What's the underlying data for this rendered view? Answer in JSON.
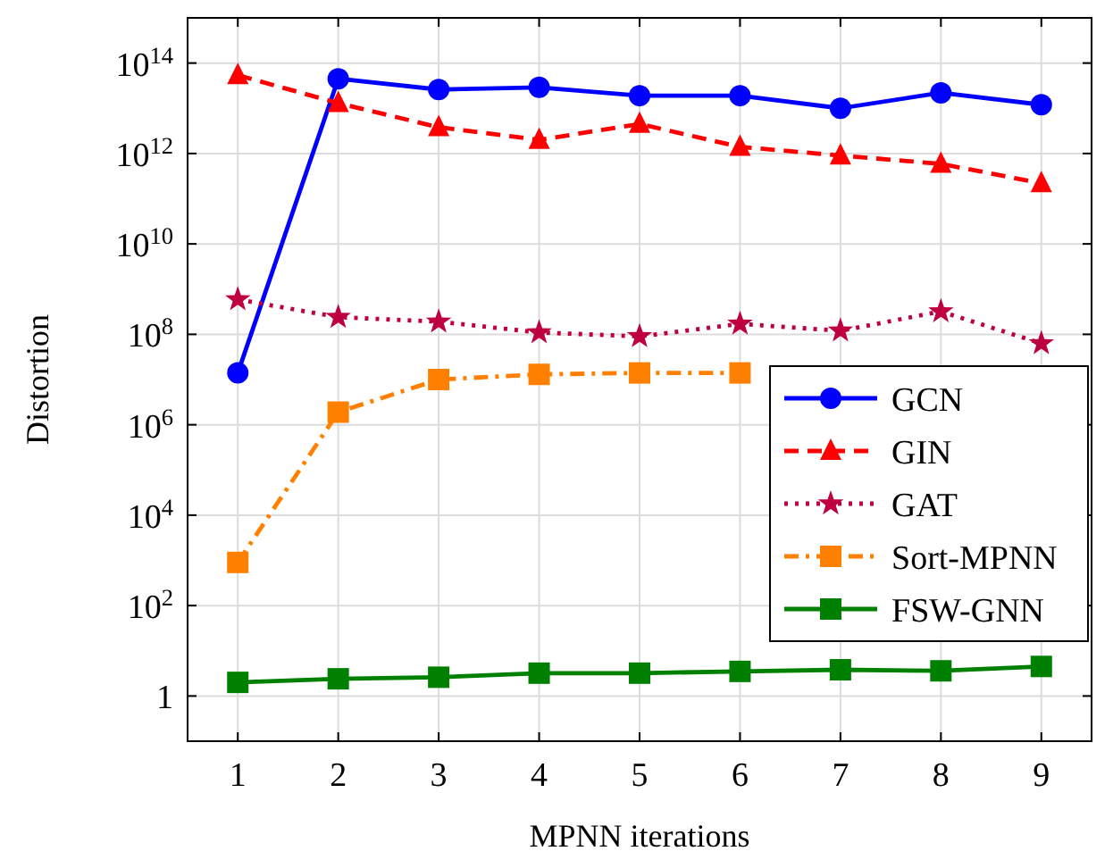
{
  "chart_data": {
    "type": "line",
    "xlabel": "MPNN iterations",
    "ylabel": "Distortion",
    "x": [
      1,
      2,
      3,
      4,
      5,
      6,
      7,
      8,
      9
    ],
    "xlim": [
      0.5,
      9.5
    ],
    "xticks": [
      1,
      2,
      3,
      4,
      5,
      6,
      7,
      8,
      9
    ],
    "log": "y",
    "ylim": [
      0.1,
      1000000000000000.0
    ],
    "yticks": [
      {
        "value": 1,
        "label": "1"
      },
      {
        "value": 100,
        "label": "10$^{2}$"
      },
      {
        "value": 10000,
        "label": "10$^{4}$"
      },
      {
        "value": 1000000,
        "label": "10$^{6}$"
      },
      {
        "value": 100000000,
        "label": "10$^{8}$"
      },
      {
        "value": 10000000000,
        "label": "10$^{10}$"
      },
      {
        "value": 1000000000000,
        "label": "10$^{12}$"
      },
      {
        "value": 100000000000000,
        "label": "10$^{14}$"
      }
    ],
    "grid": true,
    "legend": "right",
    "series": [
      {
        "name": "GCN",
        "color": "#0000ff",
        "marker": "circle",
        "line_style": "solid",
        "values": [
          14000000.0,
          45000000000000.0,
          26000000000000.0,
          29000000000000.0,
          19000000000000.0,
          19000000000000.0,
          10000000000000.0,
          22000000000000.0,
          12000000000000.0
        ]
      },
      {
        "name": "GIN",
        "color": "#ff0000",
        "marker": "triangle",
        "line_style": "dashed",
        "values": [
          54000000000000.0,
          13000000000000.0,
          3800000000000.0,
          2000000000000.0,
          4500000000000.0,
          1400000000000.0,
          900000000000.0,
          590000000000.0,
          220000000000.0
        ]
      },
      {
        "name": "GAT",
        "color": "#bf0040",
        "marker": "star",
        "line_style": "dotted",
        "values": [
          590000000.0,
          240000000.0,
          190000000.0,
          110000000.0,
          90000000.0,
          170000000.0,
          120000000.0,
          320000000.0,
          63000000.0
        ]
      },
      {
        "name": "Sort-MPNN",
        "color": "#ff8000",
        "marker": "square",
        "line_style": "dashdot",
        "values": [
          900,
          1900000.0,
          10000000.0,
          13000000.0,
          14000000.0,
          14000000.0,
          null,
          null,
          null
        ]
      },
      {
        "name": "FSW-GNN",
        "color": "#008000",
        "marker": "square",
        "line_style": "solid",
        "values": [
          2.0,
          2.4,
          2.6,
          3.2,
          3.2,
          3.5,
          3.8,
          3.6,
          4.5
        ]
      }
    ]
  }
}
